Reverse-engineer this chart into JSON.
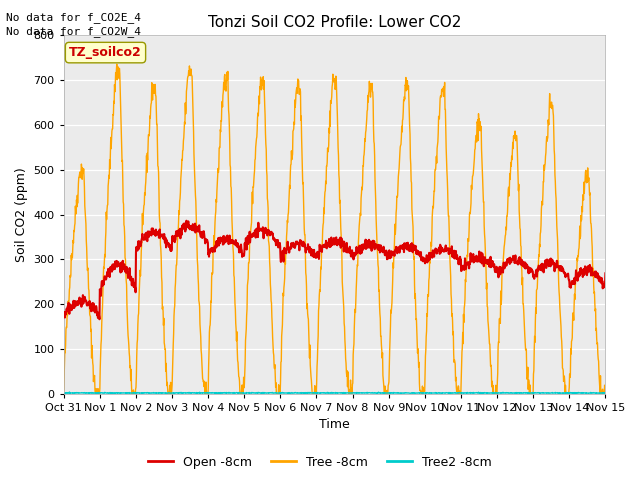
{
  "title": "Tonzi Soil CO2 Profile: Lower CO2",
  "xlabel": "Time",
  "ylabel": "Soil CO2 (ppm)",
  "ylim": [
    0,
    800
  ],
  "annotation1": "No data for f_CO2E_4",
  "annotation2": "No data for f_CO2W_4",
  "legend_box_label": "TZ_soilco2",
  "legend_entries": [
    "Open -8cm",
    "Tree -8cm",
    "Tree2 -8cm"
  ],
  "line_colors": [
    "#dd0000",
    "#ffa500",
    "#00cccc"
  ],
  "background_color": "#ebebeb",
  "figure_background": "#ffffff",
  "xtick_labels": [
    "Oct 31",
    "Nov 1",
    "Nov 2",
    "Nov 3",
    "Nov 4",
    "Nov 5",
    "Nov 6",
    "Nov 7",
    "Nov 8",
    "Nov 9",
    "Nov 10",
    "Nov 11",
    "Nov 12",
    "Nov 13",
    "Nov 14",
    "Nov 15"
  ],
  "ytick_labels": [
    0,
    100,
    200,
    300,
    400,
    500,
    600,
    700,
    800
  ]
}
